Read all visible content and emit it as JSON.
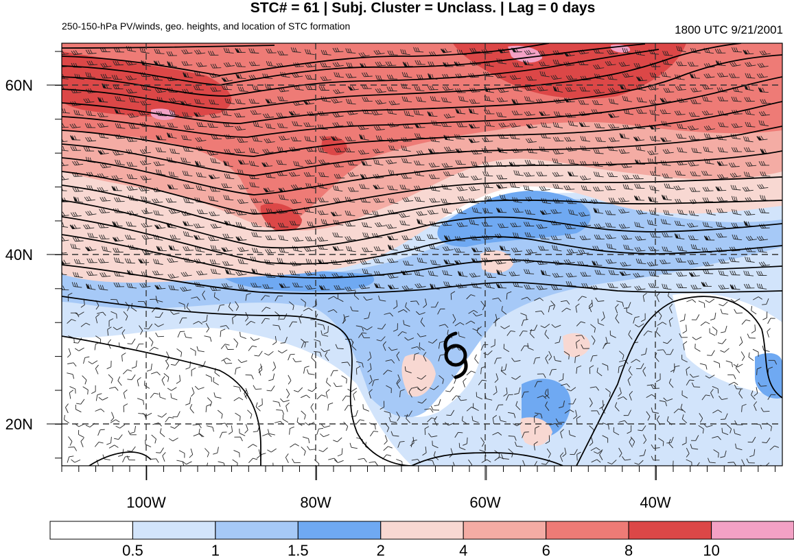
{
  "title": "STC# = 61 | Subj. Cluster = Unclass. | Lag = 0 days",
  "subtitle_left": "250-150-hPa PV/winds, geo. heights, and location of STC formation",
  "subtitle_right": "1800 UTC  9/21/2001",
  "map": {
    "lat_labels": [
      "60N",
      "40N",
      "20N"
    ],
    "lon_labels": [
      "100W",
      "80W",
      "60W",
      "40W"
    ],
    "storm_symbol": "tropical-cyclone-symbol",
    "gridlines": "dashed"
  },
  "colorbar": {
    "labels": [
      "0.5",
      "1",
      "1.5",
      "2",
      "4",
      "6",
      "8",
      "10"
    ],
    "colors": [
      "#ffffff",
      "#d2e4fb",
      "#a6c9f7",
      "#6fa9f2",
      "#f8d8d2",
      "#f4aca4",
      "#ee7b76",
      "#dc4747",
      "#f3a1c5"
    ]
  }
}
